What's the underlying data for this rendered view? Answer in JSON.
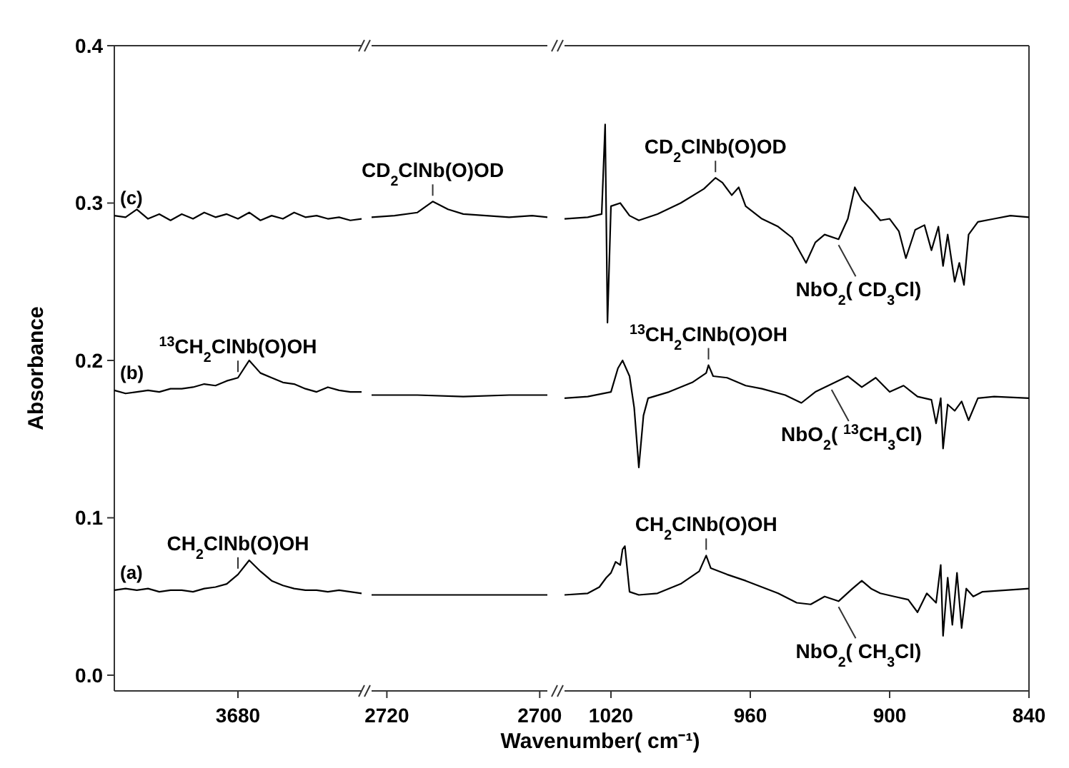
{
  "chart_data": [
    {
      "type": "line",
      "ylabel": "Absorbance",
      "categories": [
        null,
        null,
        null,
        null,
        null,
        null,
        null,
        null,
        null,
        null,
        null,
        "3680",
        null,
        null,
        null,
        null,
        null,
        null,
        null,
        null,
        null,
        null,
        null
      ],
      "ylim": [
        -0.01,
        0.4
      ],
      "yticks": [
        {
          "value": 0,
          "label": "0.0"
        },
        0.1,
        0.2,
        0.3,
        0.4
      ],
      "series": [
        {
          "name": "(a)",
          "color": "#000000",
          "values": [
            0.054,
            0.055,
            0.054,
            0.055,
            0.053,
            0.054,
            0.054,
            0.053,
            0.055,
            0.056,
            0.058,
            0.064,
            0.073,
            0.066,
            0.06,
            0.057,
            0.055,
            0.054,
            0.054,
            0.053,
            0.054,
            0.053,
            0.052
          ]
        },
        {
          "name": "(b)",
          "color": "#000000",
          "values": [
            0.181,
            0.179,
            0.18,
            0.181,
            0.18,
            0.182,
            0.182,
            0.183,
            0.185,
            0.184,
            0.187,
            0.189,
            0.2,
            0.192,
            0.189,
            0.186,
            0.185,
            0.182,
            0.18,
            0.183,
            0.181,
            0.18,
            0.18
          ]
        },
        {
          "name": "(c)",
          "color": "#000000",
          "values": [
            0.292,
            0.291,
            0.296,
            0.29,
            0.293,
            0.289,
            0.293,
            0.29,
            0.294,
            0.291,
            0.293,
            0.29,
            0.294,
            0.289,
            0.292,
            0.29,
            0.294,
            0.291,
            0.292,
            0.29,
            0.291,
            0.289,
            0.29
          ]
        }
      ],
      "annotations": [
        {
          "text": "CH$_{2}$ClNb(O)OH",
          "x": "3680",
          "y": 0.064
        },
        {
          "text": "$^{13}$CH$_{2}$ClNb(O)OH",
          "x": "3680",
          "y": 0.189
        }
      ]
    },
    {
      "type": "line",
      "xlabel": "Wavenumber( cm⁻¹)",
      "xlim": [
        2722,
        2699
      ],
      "xticks": [
        2720,
        2700
      ],
      "ylim": [
        -0.01,
        0.4
      ],
      "tick_labels": "x",
      "series": [
        {
          "color": "#000000",
          "x": [
            2722,
            2716,
            2710,
            2704,
            2699
          ],
          "values": [
            0.051,
            0.051,
            0.051,
            0.051,
            0.051
          ]
        },
        {
          "color": "#000000",
          "x": [
            2722,
            2716,
            2710,
            2704,
            2699
          ],
          "values": [
            0.178,
            0.178,
            0.177,
            0.178,
            0.178
          ]
        },
        {
          "color": "#000000",
          "x": [
            2722,
            2719,
            2716,
            2714,
            2712,
            2710,
            2707,
            2704,
            2701,
            2699
          ],
          "values": [
            0.291,
            0.292,
            0.294,
            0.301,
            0.296,
            0.293,
            0.292,
            0.291,
            0.292,
            0.291
          ]
        }
      ],
      "annotations": [
        {
          "text": "CD$_{2}$ClNb(O)OD",
          "x": 2714,
          "y": 0.301
        }
      ]
    },
    {
      "type": "line",
      "xlim": [
        1040,
        840
      ],
      "xticks": [
        1020,
        960,
        900,
        840
      ],
      "ylim": [
        -0.01,
        0.4
      ],
      "tick_labels": "x",
      "series": [
        {
          "color": "#000000",
          "x": [
            1040,
            1030,
            1025,
            1022,
            1020,
            1018,
            1016,
            1015,
            1014,
            1012,
            1008,
            1000,
            990,
            982,
            979,
            977,
            970,
            962,
            955,
            948,
            940,
            934,
            928,
            922,
            916,
            912,
            908,
            904,
            898,
            892,
            888,
            884,
            880,
            878,
            877,
            875,
            873,
            871,
            869,
            867,
            864,
            860,
            850,
            840
          ],
          "values": [
            0.051,
            0.052,
            0.056,
            0.062,
            0.065,
            0.072,
            0.07,
            0.08,
            0.082,
            0.053,
            0.051,
            0.052,
            0.058,
            0.066,
            0.076,
            0.068,
            0.064,
            0.06,
            0.056,
            0.052,
            0.046,
            0.045,
            0.05,
            0.047,
            0.055,
            0.06,
            0.055,
            0.052,
            0.05,
            0.048,
            0.04,
            0.052,
            0.046,
            0.07,
            0.025,
            0.062,
            0.032,
            0.065,
            0.03,
            0.055,
            0.05,
            0.053,
            0.054,
            0.055
          ]
        },
        {
          "color": "#000000",
          "x": [
            1040,
            1030,
            1020,
            1017,
            1015,
            1012,
            1010,
            1008,
            1006,
            1004,
            995,
            985,
            979,
            978,
            976,
            970,
            962,
            955,
            945,
            938,
            932,
            925,
            918,
            912,
            906,
            900,
            894,
            888,
            882,
            880,
            878,
            877,
            875,
            872,
            869,
            866,
            862,
            855,
            840
          ],
          "values": [
            0.176,
            0.177,
            0.18,
            0.195,
            0.2,
            0.19,
            0.17,
            0.132,
            0.165,
            0.176,
            0.18,
            0.186,
            0.192,
            0.197,
            0.19,
            0.189,
            0.184,
            0.182,
            0.178,
            0.173,
            0.18,
            0.185,
            0.19,
            0.183,
            0.189,
            0.18,
            0.184,
            0.177,
            0.175,
            0.16,
            0.176,
            0.144,
            0.172,
            0.168,
            0.174,
            0.162,
            0.176,
            0.177,
            0.176
          ]
        },
        {
          "color": "#000000",
          "x": [
            1040,
            1030,
            1024,
            1022.5,
            1021.5,
            1020,
            1016,
            1012,
            1008,
            1000,
            990,
            980,
            975,
            972,
            968,
            965,
            962,
            955,
            948,
            942,
            936,
            932,
            928,
            922,
            918,
            915,
            912,
            908,
            904,
            900,
            896,
            893,
            889,
            885,
            882,
            879,
            877,
            875,
            872,
            870,
            868,
            866,
            862,
            855,
            848,
            840
          ],
          "values": [
            0.29,
            0.291,
            0.293,
            0.35,
            0.224,
            0.298,
            0.3,
            0.292,
            0.289,
            0.293,
            0.3,
            0.309,
            0.316,
            0.313,
            0.305,
            0.31,
            0.298,
            0.29,
            0.285,
            0.278,
            0.262,
            0.275,
            0.28,
            0.277,
            0.29,
            0.31,
            0.302,
            0.296,
            0.289,
            0.29,
            0.282,
            0.265,
            0.283,
            0.286,
            0.27,
            0.285,
            0.26,
            0.28,
            0.25,
            0.262,
            0.248,
            0.28,
            0.288,
            0.29,
            0.292,
            0.291
          ]
        }
      ],
      "annotations": [
        {
          "text": "CD$_{2}$ClNb(O)OD",
          "x": 975,
          "y": 0.316
        },
        {
          "text": "$^{13}$CH$_{2}$ClNb(O)OH",
          "x": 978,
          "y": 0.197
        },
        {
          "text": "CH$_{2}$ClNb(O)OH",
          "x": 979,
          "y": 0.076
        },
        {
          "text": "NbO$_{2}$( CD$_{3}$Cl)",
          "x": 922,
          "y": 0.277
        },
        {
          "text": "NbO$_{2}$( $^{13}$CH$_{3}$Cl)",
          "x": 925,
          "y": 0.185
        },
        {
          "text": "NbO$_{2}$( CH$_{3}$Cl)",
          "x": 922,
          "y": 0.047
        }
      ]
    }
  ]
}
